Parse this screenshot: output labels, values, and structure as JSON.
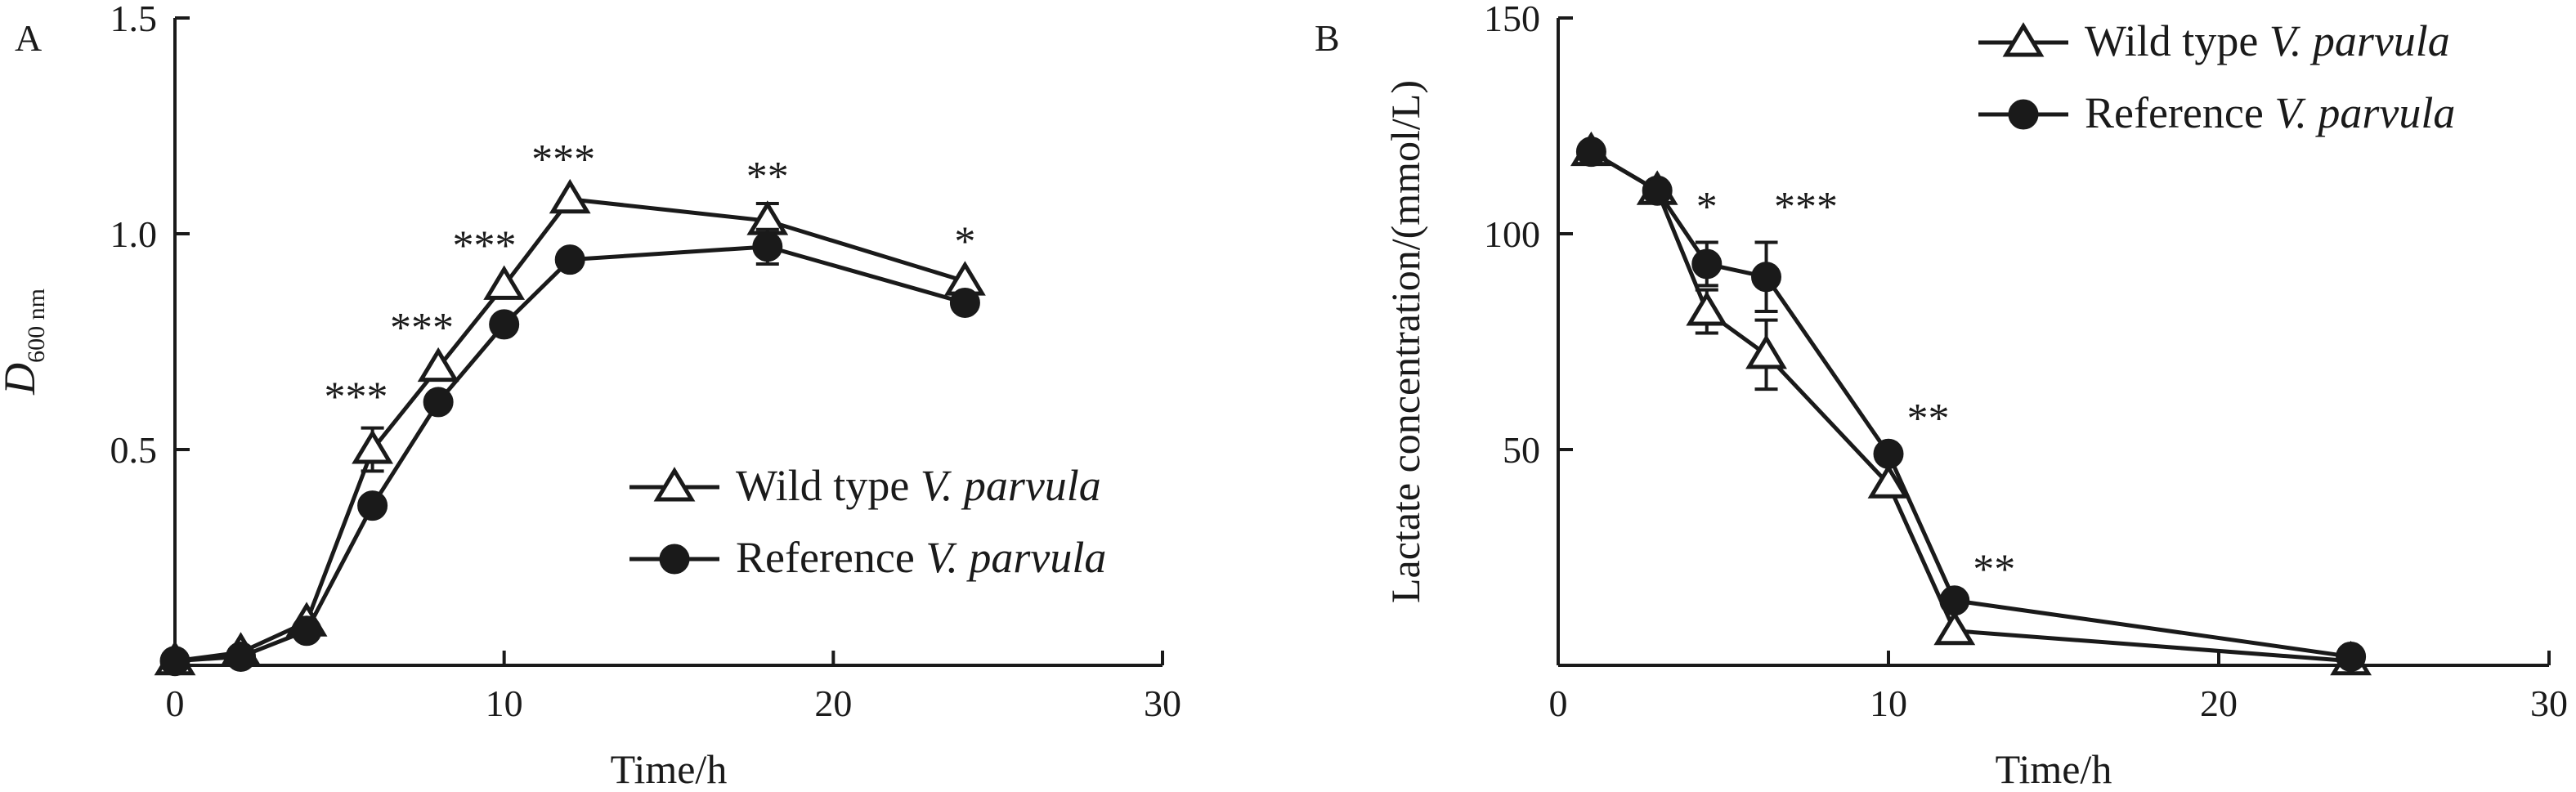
{
  "chart_data": [
    {
      "type": "line",
      "panel_label": "A",
      "xlabel": "Time/h",
      "ylabel_main": "D",
      "ylabel_sub": "600 nm",
      "xlim": [
        0,
        30
      ],
      "ylim": [
        0,
        1.5
      ],
      "xticks": [
        0,
        10,
        20,
        30
      ],
      "xtick_labels": [
        "0",
        "10",
        "20",
        "30"
      ],
      "yticks": [
        0.5,
        1.0,
        1.5
      ],
      "ytick_labels": [
        "0.5",
        "1.0",
        "1.5"
      ],
      "grid": false,
      "legend_position": "center-right",
      "series": [
        {
          "name_plain": "Wild type ",
          "name_italic": "V. parvula",
          "marker": "triangle-open",
          "x": [
            0,
            2,
            4,
            6,
            8,
            10,
            12,
            18,
            24
          ],
          "y": [
            0.01,
            0.03,
            0.1,
            0.5,
            0.69,
            0.88,
            1.08,
            1.03,
            0.89
          ],
          "err": [
            0,
            0,
            0,
            0.05,
            0,
            0,
            0,
            0.04,
            0
          ]
        },
        {
          "name_plain": "Reference ",
          "name_italic": "V. parvula",
          "marker": "circle-filled",
          "x": [
            0,
            2,
            4,
            6,
            8,
            10,
            12,
            18,
            24
          ],
          "y": [
            0.01,
            0.02,
            0.08,
            0.37,
            0.61,
            0.79,
            0.94,
            0.97,
            0.84
          ],
          "err": [
            0,
            0,
            0,
            0,
            0,
            0,
            0,
            0.04,
            0
          ]
        }
      ],
      "annotations": [
        {
          "x": 5.5,
          "y": 0.59,
          "text": "***"
        },
        {
          "x": 7.5,
          "y": 0.75,
          "text": "***"
        },
        {
          "x": 9.4,
          "y": 0.94,
          "text": "***"
        },
        {
          "x": 11.8,
          "y": 1.14,
          "text": "***"
        },
        {
          "x": 18.0,
          "y": 1.1,
          "text": "**"
        },
        {
          "x": 24.0,
          "y": 0.95,
          "text": "*"
        }
      ]
    },
    {
      "type": "line",
      "panel_label": "B",
      "xlabel": "Time/h",
      "ylabel": "Lactate concentration/(mmol/L)",
      "xlim": [
        0,
        30
      ],
      "ylim": [
        0,
        150
      ],
      "xticks": [
        0,
        10,
        20,
        30
      ],
      "xtick_labels": [
        "0",
        "10",
        "20",
        "30"
      ],
      "yticks": [
        50,
        100,
        150
      ],
      "ytick_labels": [
        "50",
        "100",
        "150"
      ],
      "grid": false,
      "legend_position": "top-right",
      "series": [
        {
          "name_plain": "Wild type ",
          "name_italic": "V. parvula",
          "marker": "triangle-open",
          "x": [
            1,
            3,
            4.5,
            6.3,
            10,
            12,
            24
          ],
          "y": [
            119,
            110,
            82,
            72,
            42,
            8,
            1
          ],
          "err": [
            0,
            0,
            5,
            8,
            0,
            0,
            0
          ]
        },
        {
          "name_plain": "Reference ",
          "name_italic": "V. parvula",
          "marker": "circle-filled",
          "x": [
            1,
            3,
            4.5,
            6.3,
            10,
            12,
            24
          ],
          "y": [
            119,
            110,
            93,
            90,
            49,
            15,
            2
          ],
          "err": [
            0,
            0,
            5,
            8,
            0,
            0,
            0
          ]
        }
      ],
      "annotations": [
        {
          "x": 4.5,
          "y": 103,
          "text": "*"
        },
        {
          "x": 7.5,
          "y": 103,
          "text": "***"
        },
        {
          "x": 11.2,
          "y": 54,
          "text": "**"
        },
        {
          "x": 13.2,
          "y": 19,
          "text": "**"
        }
      ]
    }
  ]
}
